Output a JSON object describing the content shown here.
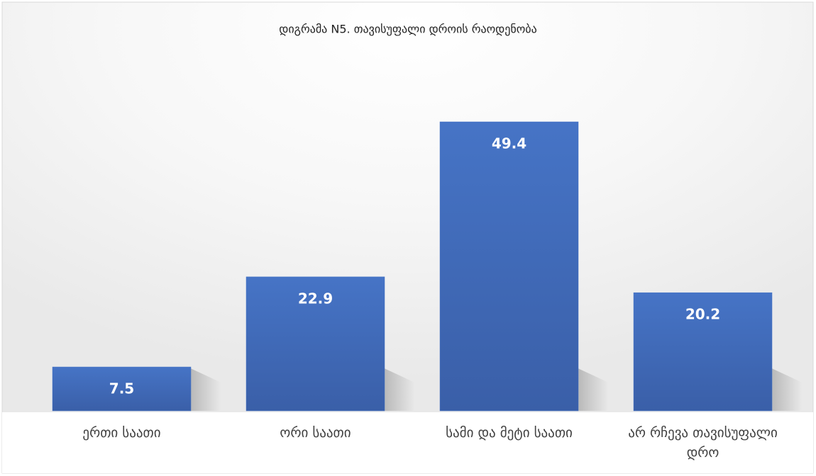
{
  "chart_data": {
    "type": "bar",
    "title": "დიგრამა N5. თავისუფალი დროის რაოდენობა",
    "categories": [
      "ერთი საათი",
      "ორი საათი",
      "სამი და მეტი საათი",
      "არ რჩევა თავისუფალი დრო"
    ],
    "values": [
      7.5,
      22.9,
      49.4,
      20.2
    ],
    "color": "#4472c4"
  }
}
